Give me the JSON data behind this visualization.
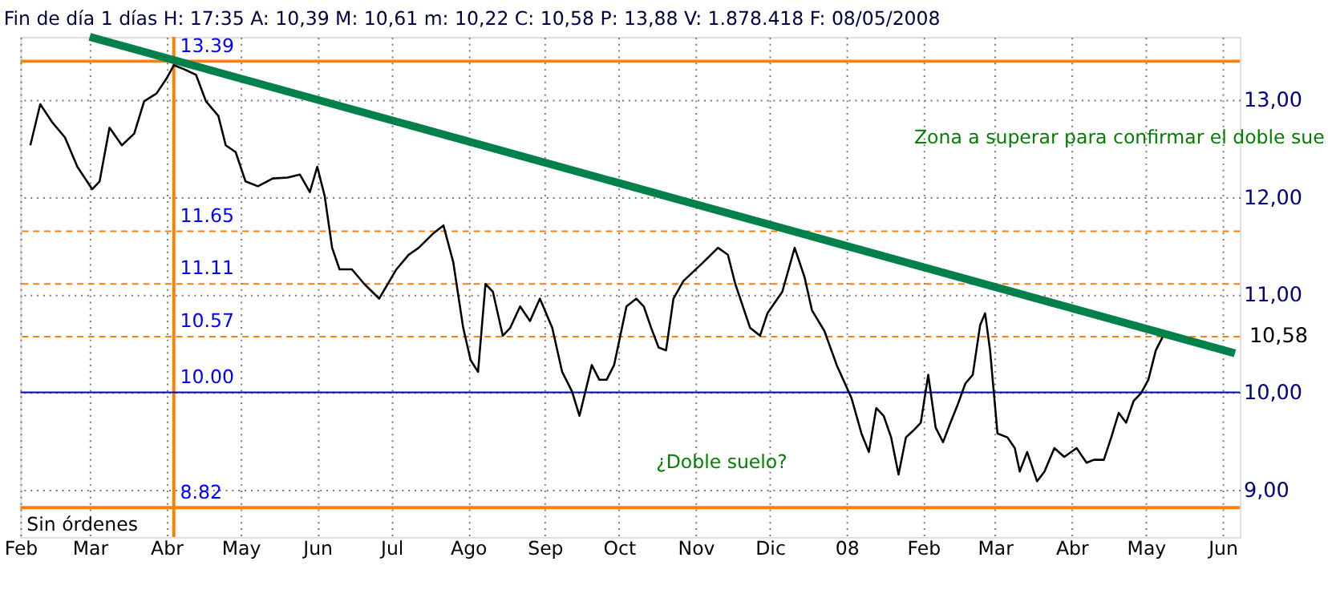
{
  "chart_data": {
    "type": "line",
    "title": "Fin de día 1 días H: 17:35 A: 10,39 M: 10,61 m: 10,22 C: 10,58 P: 13,88 V: 1.878.418 F: 08/05/2008",
    "series": [
      {
        "color": "#000000",
        "x": [
          "2007-02-05",
          "2007-02-09",
          "2007-02-14",
          "2007-02-19",
          "2007-02-24",
          "2007-03-02",
          "2007-03-05",
          "2007-03-09",
          "2007-03-14",
          "2007-03-19",
          "2007-03-23",
          "2007-03-28",
          "2007-04-01",
          "2007-04-04",
          "2007-04-08",
          "2007-04-13",
          "2007-04-17",
          "2007-04-22",
          "2007-04-25",
          "2007-04-29",
          "2007-05-03",
          "2007-05-08",
          "2007-05-14",
          "2007-05-20",
          "2007-05-25",
          "2007-05-29",
          "2007-06-01",
          "2007-06-04",
          "2007-06-07",
          "2007-06-10",
          "2007-06-15",
          "2007-06-20",
          "2007-06-26",
          "2007-07-03",
          "2007-07-08",
          "2007-07-12",
          "2007-07-18",
          "2007-07-22",
          "2007-07-26",
          "2007-07-30",
          "2007-08-02",
          "2007-08-05",
          "2007-08-08",
          "2007-08-11",
          "2007-08-15",
          "2007-08-18",
          "2007-08-22",
          "2007-08-26",
          "2007-08-30",
          "2007-09-04",
          "2007-09-08",
          "2007-09-12",
          "2007-09-15",
          "2007-09-20",
          "2007-09-23",
          "2007-09-26",
          "2007-09-29",
          "2007-10-04",
          "2007-10-08",
          "2007-10-11",
          "2007-10-14",
          "2007-10-17",
          "2007-10-20",
          "2007-10-23",
          "2007-10-27",
          "2007-11-04",
          "2007-11-10",
          "2007-11-14",
          "2007-11-17",
          "2007-11-23",
          "2007-11-27",
          "2007-11-30",
          "2007-12-06",
          "2007-12-11",
          "2007-12-15",
          "2007-12-18",
          "2007-12-23",
          "2007-12-28",
          "2008-01-03",
          "2008-01-07",
          "2008-01-10",
          "2008-01-13",
          "2008-01-16",
          "2008-01-19",
          "2008-01-22",
          "2008-01-25",
          "2008-01-28",
          "2008-01-31",
          "2008-02-03",
          "2008-02-06",
          "2008-02-09",
          "2008-02-12",
          "2008-02-15",
          "2008-02-18",
          "2008-02-21",
          "2008-02-24",
          "2008-02-26",
          "2008-02-28",
          "2008-03-02",
          "2008-03-06",
          "2008-03-09",
          "2008-03-11",
          "2008-03-14",
          "2008-03-18",
          "2008-03-21",
          "2008-03-25",
          "2008-03-29",
          "2008-04-03",
          "2008-04-07",
          "2008-04-10",
          "2008-04-14",
          "2008-04-17",
          "2008-04-20",
          "2008-04-23",
          "2008-04-26",
          "2008-04-29",
          "2008-05-02",
          "2008-05-05",
          "2008-05-08"
        ],
        "values": [
          12.53,
          12.95,
          12.76,
          12.61,
          12.31,
          12.08,
          12.16,
          12.71,
          12.53,
          12.65,
          12.98,
          13.06,
          13.21,
          13.35,
          13.31,
          13.25,
          12.98,
          12.83,
          12.53,
          12.46,
          12.16,
          12.11,
          12.19,
          12.2,
          12.23,
          12.05,
          12.31,
          12.01,
          11.48,
          11.26,
          11.26,
          11.11,
          10.96,
          11.26,
          11.41,
          11.48,
          11.63,
          11.71,
          11.33,
          10.66,
          10.33,
          10.21,
          11.11,
          11.03,
          10.58,
          10.66,
          10.88,
          10.73,
          10.96,
          10.66,
          10.21,
          10.01,
          9.76,
          10.28,
          10.13,
          10.13,
          10.28,
          10.88,
          10.96,
          10.88,
          10.66,
          10.46,
          10.43,
          10.96,
          11.14,
          11.33,
          11.48,
          11.41,
          11.11,
          10.66,
          10.58,
          10.81,
          11.03,
          11.48,
          11.18,
          10.84,
          10.63,
          10.28,
          9.94,
          9.58,
          9.39,
          9.84,
          9.76,
          9.54,
          9.16,
          9.54,
          9.61,
          9.69,
          10.18,
          9.64,
          9.49,
          9.69,
          9.88,
          10.09,
          10.18,
          10.69,
          10.81,
          10.43,
          9.58,
          9.54,
          9.43,
          9.19,
          9.39,
          9.09,
          9.19,
          9.43,
          9.34,
          9.43,
          9.28,
          9.31,
          9.31,
          9.54,
          9.79,
          9.69,
          9.91,
          9.99,
          10.13,
          10.43,
          10.58
        ]
      },
      {
        "color": "#00804a",
        "x": [
          "2007-03-01",
          "2008-06-06"
        ],
        "values": [
          13.64,
          10.4
        ]
      }
    ],
    "xlim": [
      "2007-02-01",
      "2008-06-08"
    ],
    "xticks": [
      {
        "value": "2007-02-01",
        "label": "Feb"
      },
      {
        "value": "2007-03-01",
        "label": "Mar"
      },
      {
        "value": "2007-04-01",
        "label": "Abr"
      },
      {
        "value": "2007-05-01",
        "label": "May"
      },
      {
        "value": "2007-06-01",
        "label": "Jun"
      },
      {
        "value": "2007-07-01",
        "label": "Jul"
      },
      {
        "value": "2007-08-01",
        "label": "Ago"
      },
      {
        "value": "2007-09-01",
        "label": "Sep"
      },
      {
        "value": "2007-10-01",
        "label": "Oct"
      },
      {
        "value": "2007-11-01",
        "label": "Nov"
      },
      {
        "value": "2007-12-01",
        "label": "Dic"
      },
      {
        "value": "2008-01-01",
        "label": "08"
      },
      {
        "value": "2008-02-01",
        "label": "Feb"
      },
      {
        "value": "2008-03-01",
        "label": "Mar"
      },
      {
        "value": "2008-04-01",
        "label": "Abr"
      },
      {
        "value": "2008-05-01",
        "label": "May"
      },
      {
        "value": "2008-06-01",
        "label": "Jun"
      }
    ],
    "ylim": [
      8.52,
      13.64
    ],
    "yticks": [
      {
        "value": 9,
        "label": "9,00"
      },
      {
        "value": 10,
        "label": "10,00"
      },
      {
        "value": 11,
        "label": "11,00"
      },
      {
        "value": 12,
        "label": "12,00"
      },
      {
        "value": 13,
        "label": "13,00"
      }
    ],
    "ref_lines": [
      {
        "axis": "y",
        "value": 13.39,
        "label": "13.39",
        "color": "#ff8000",
        "line_style": "solid"
      },
      {
        "axis": "y",
        "value": 11.65,
        "label": "11.65",
        "color": "#ff8000",
        "line_style": "dashed"
      },
      {
        "axis": "y",
        "value": 11.11,
        "label": "11.11",
        "color": "#ff8000",
        "line_style": "dashed"
      },
      {
        "axis": "y",
        "value": 10.57,
        "label": "10.57",
        "color": "#ff8000",
        "line_style": "dashed"
      },
      {
        "axis": "y",
        "value": 10.0,
        "label": "10.00",
        "color": "#0000cc",
        "line_style": "solid"
      },
      {
        "axis": "y",
        "value": 8.82,
        "label": "8.82",
        "color": "#ff8000",
        "line_style": "solid"
      },
      {
        "axis": "x",
        "value": "2007-04-04",
        "color": "#ff8000",
        "line_style": "solid"
      }
    ],
    "annotations": [
      "Zona a superar para confirmar el doble sue",
      "¿Doble suelo?",
      "Sin órdenes",
      "10,58"
    ],
    "grid": true
  }
}
